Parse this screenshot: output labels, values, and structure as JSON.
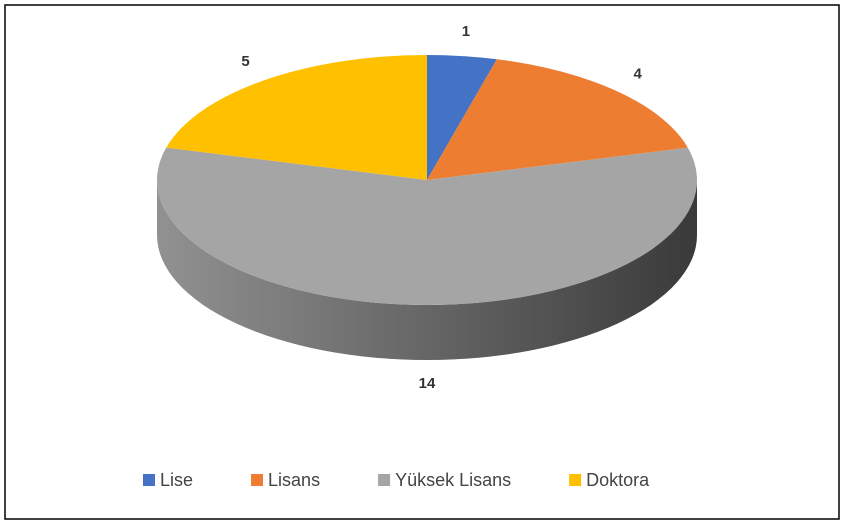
{
  "chart_data": {
    "type": "pie3d",
    "categories": [
      "Lise",
      "Lisans",
      "Yüksek Lisans",
      "Doktora"
    ],
    "values": [
      1,
      4,
      14,
      5
    ],
    "colors": [
      "#4472c4",
      "#ed7d31",
      "#a5a5a5",
      "#ffc000"
    ],
    "legend": "bottom"
  }
}
